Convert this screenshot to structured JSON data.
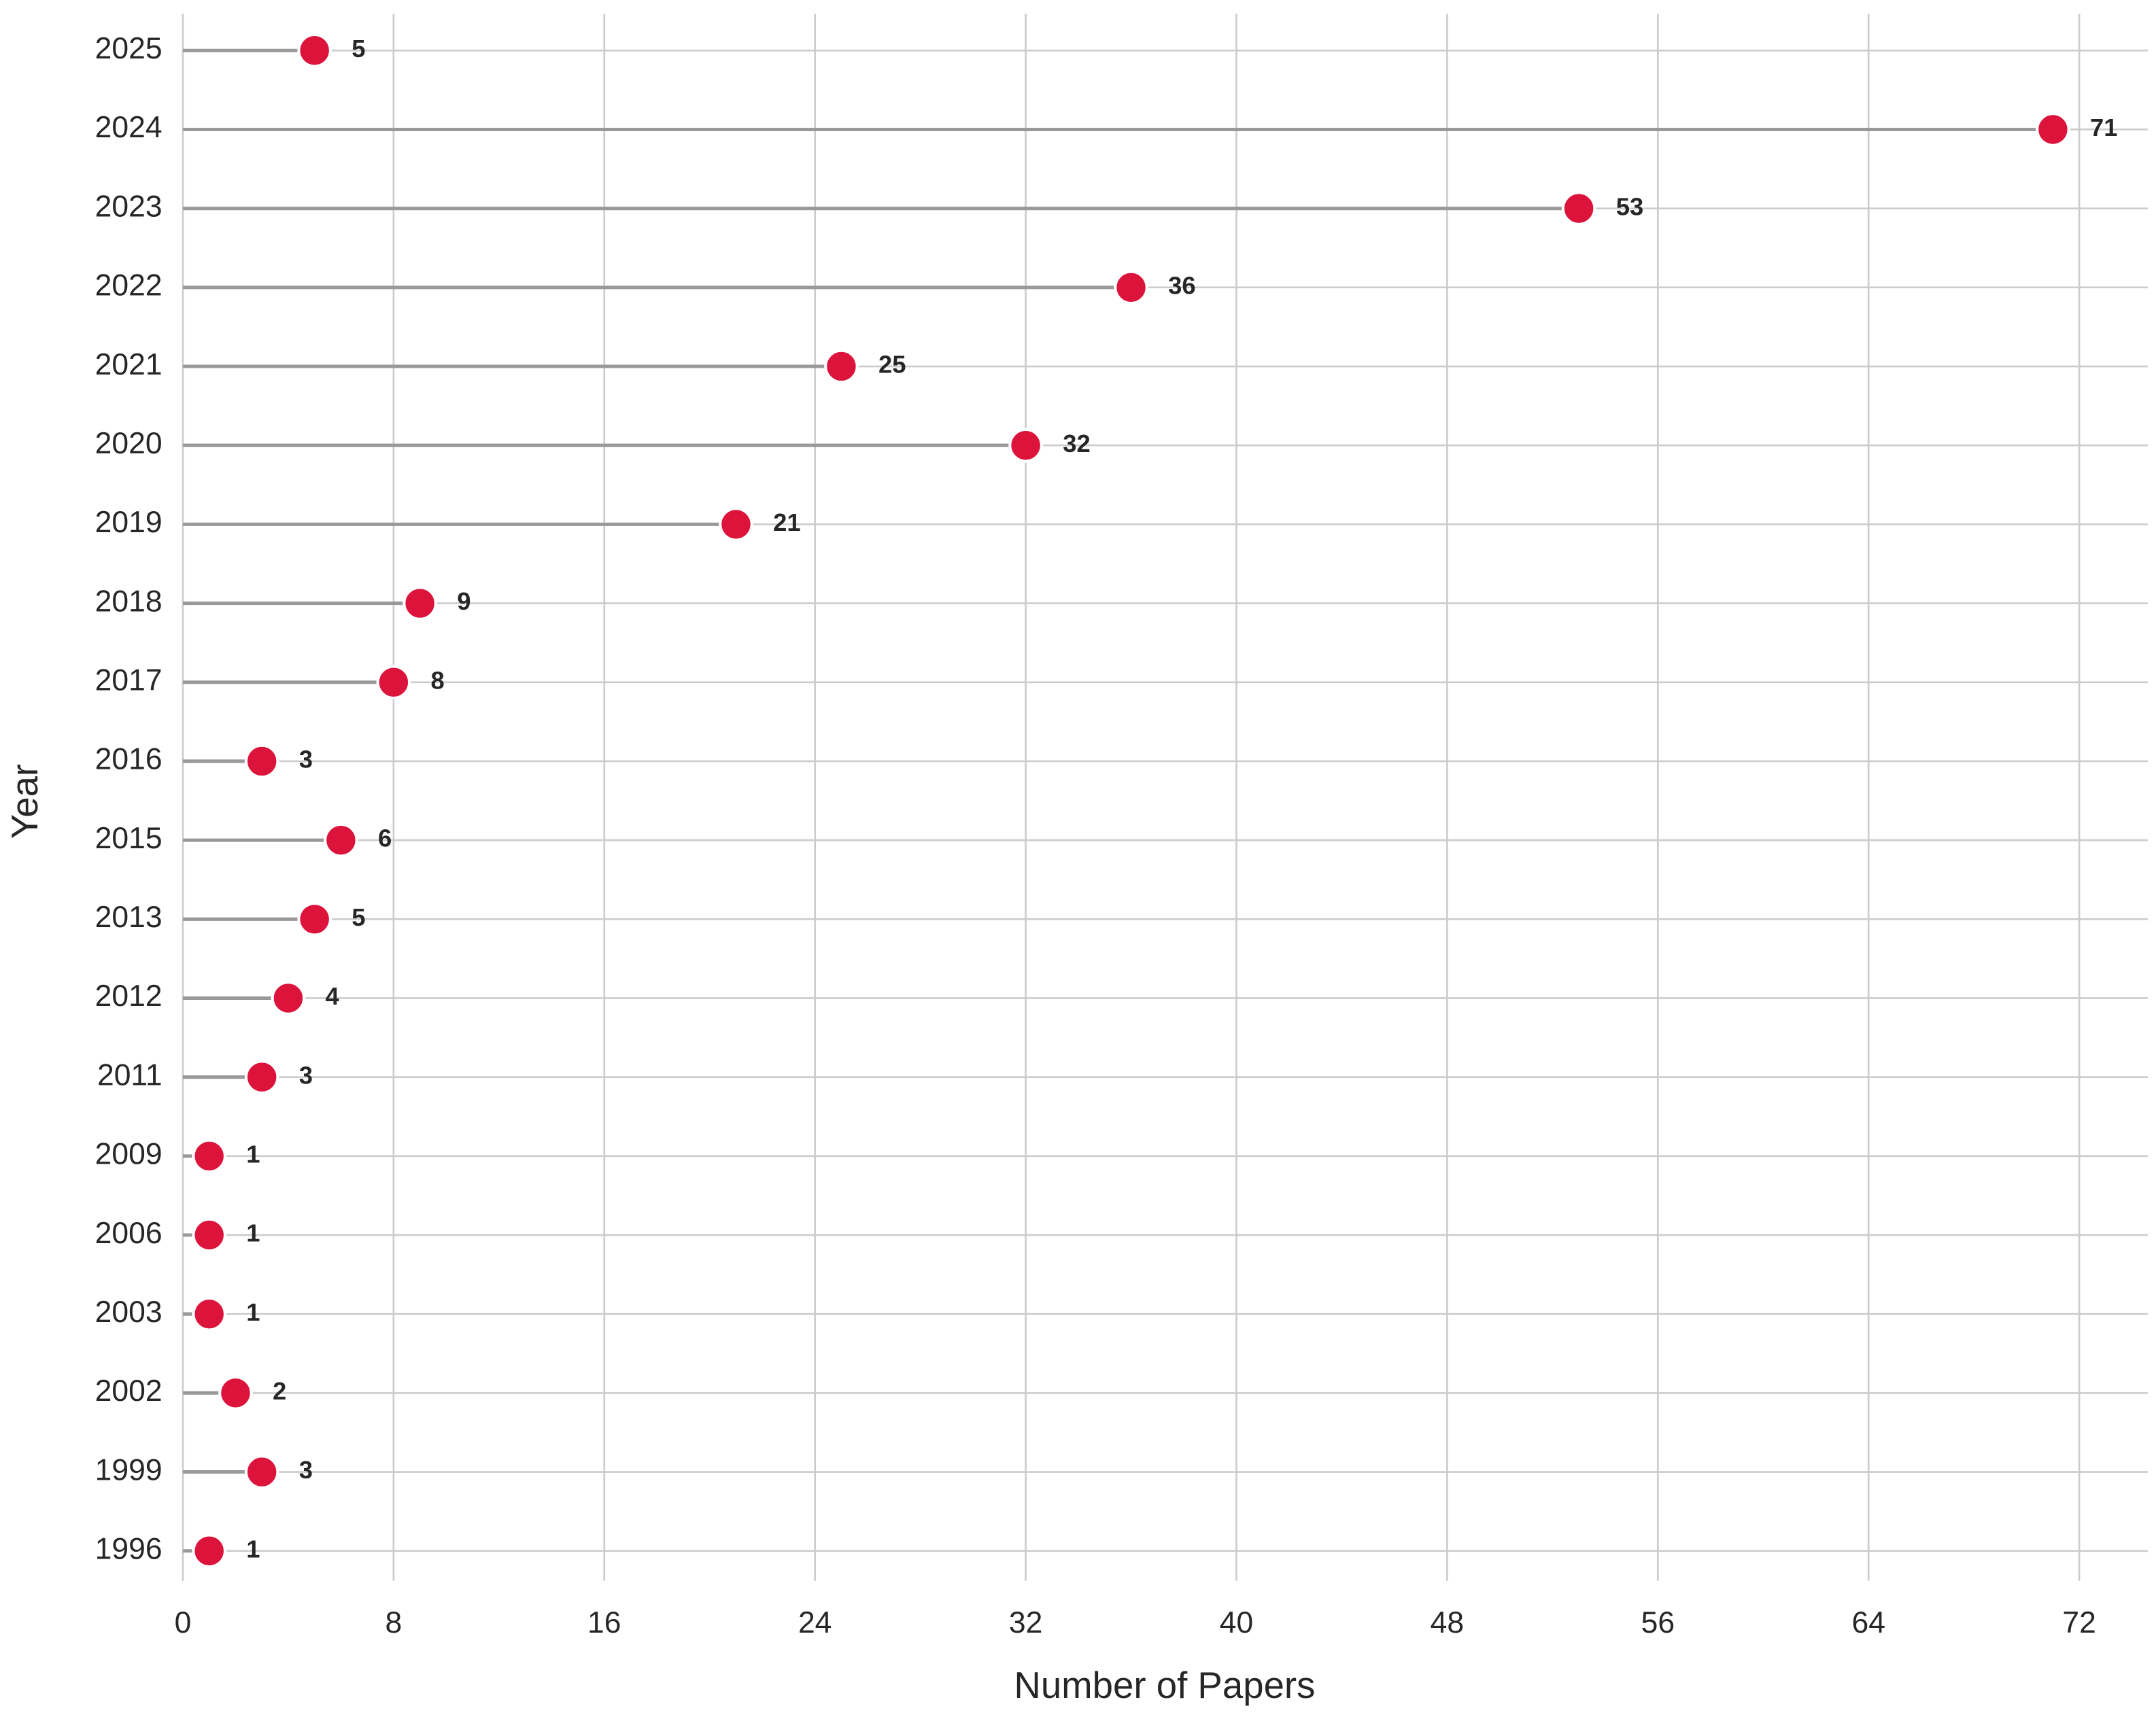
{
  "chart_data": {
    "type": "lollipop",
    "xlabel": "Number of Papers",
    "ylabel": "Year",
    "categories": [
      "2025",
      "2024",
      "2023",
      "2022",
      "2021",
      "2020",
      "2019",
      "2018",
      "2017",
      "2016",
      "2015",
      "2013",
      "2012",
      "2011",
      "2009",
      "2006",
      "2003",
      "2002",
      "1999",
      "1996"
    ],
    "values": [
      5,
      71,
      53,
      36,
      25,
      32,
      21,
      9,
      8,
      3,
      6,
      5,
      4,
      3,
      1,
      1,
      1,
      2,
      3,
      1
    ],
    "color": "#dc143c",
    "stem_color": "#999999",
    "xlim": [
      0,
      74.6
    ],
    "xticks": [
      0,
      8,
      16,
      24,
      32,
      40,
      48,
      56,
      64,
      72
    ],
    "grid": true
  }
}
